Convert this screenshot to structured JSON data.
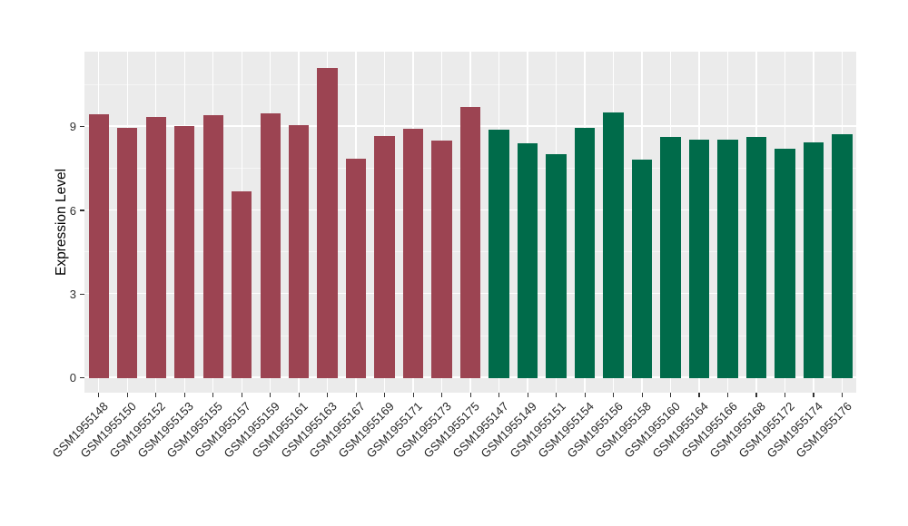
{
  "chart_data": {
    "type": "bar",
    "title": "",
    "xlabel": "",
    "ylabel": "Expression Level",
    "yticks": [
      0,
      3,
      6,
      9
    ],
    "minor_gridlines": [
      1.5,
      4.5,
      7.5,
      10.5
    ],
    "ylim": [
      -0.55,
      11.69
    ],
    "grid": "on",
    "legend": "none",
    "categories": [
      "GSM1955148",
      "GSM1955150",
      "GSM1955152",
      "GSM1955153",
      "GSM1955155",
      "GSM1955157",
      "GSM1955159",
      "GSM1955161",
      "GSM1955163",
      "GSM1955167",
      "GSM1955169",
      "GSM1955171",
      "GSM1955173",
      "GSM1955175",
      "GSM1955147",
      "GSM1955149",
      "GSM1955151",
      "GSM1955154",
      "GSM1955156",
      "GSM1955158",
      "GSM1955160",
      "GSM1955164",
      "GSM1955166",
      "GSM1955168",
      "GSM1955172",
      "GSM1955174",
      "GSM1955176"
    ],
    "values": [
      9.44,
      8.97,
      9.35,
      9.03,
      9.42,
      6.67,
      9.47,
      9.07,
      11.1,
      7.85,
      8.66,
      8.93,
      8.5,
      9.71,
      8.9,
      8.42,
      8.03,
      8.95,
      9.52,
      7.83,
      8.63,
      8.54,
      8.53,
      8.64,
      8.21,
      8.45,
      8.73
    ],
    "groups": [
      "A",
      "A",
      "A",
      "A",
      "A",
      "A",
      "A",
      "A",
      "A",
      "A",
      "A",
      "A",
      "A",
      "A",
      "B",
      "B",
      "B",
      "B",
      "B",
      "B",
      "B",
      "B",
      "B",
      "B",
      "B",
      "B",
      "B"
    ],
    "group_colors": {
      "A": "#9C4452",
      "B": "#006B4A"
    },
    "colors": {
      "panel_background": "#EBEBEB",
      "gridline_major": "#FFFFFF",
      "axis_text": "#303030",
      "axis_title": "#000000"
    }
  }
}
